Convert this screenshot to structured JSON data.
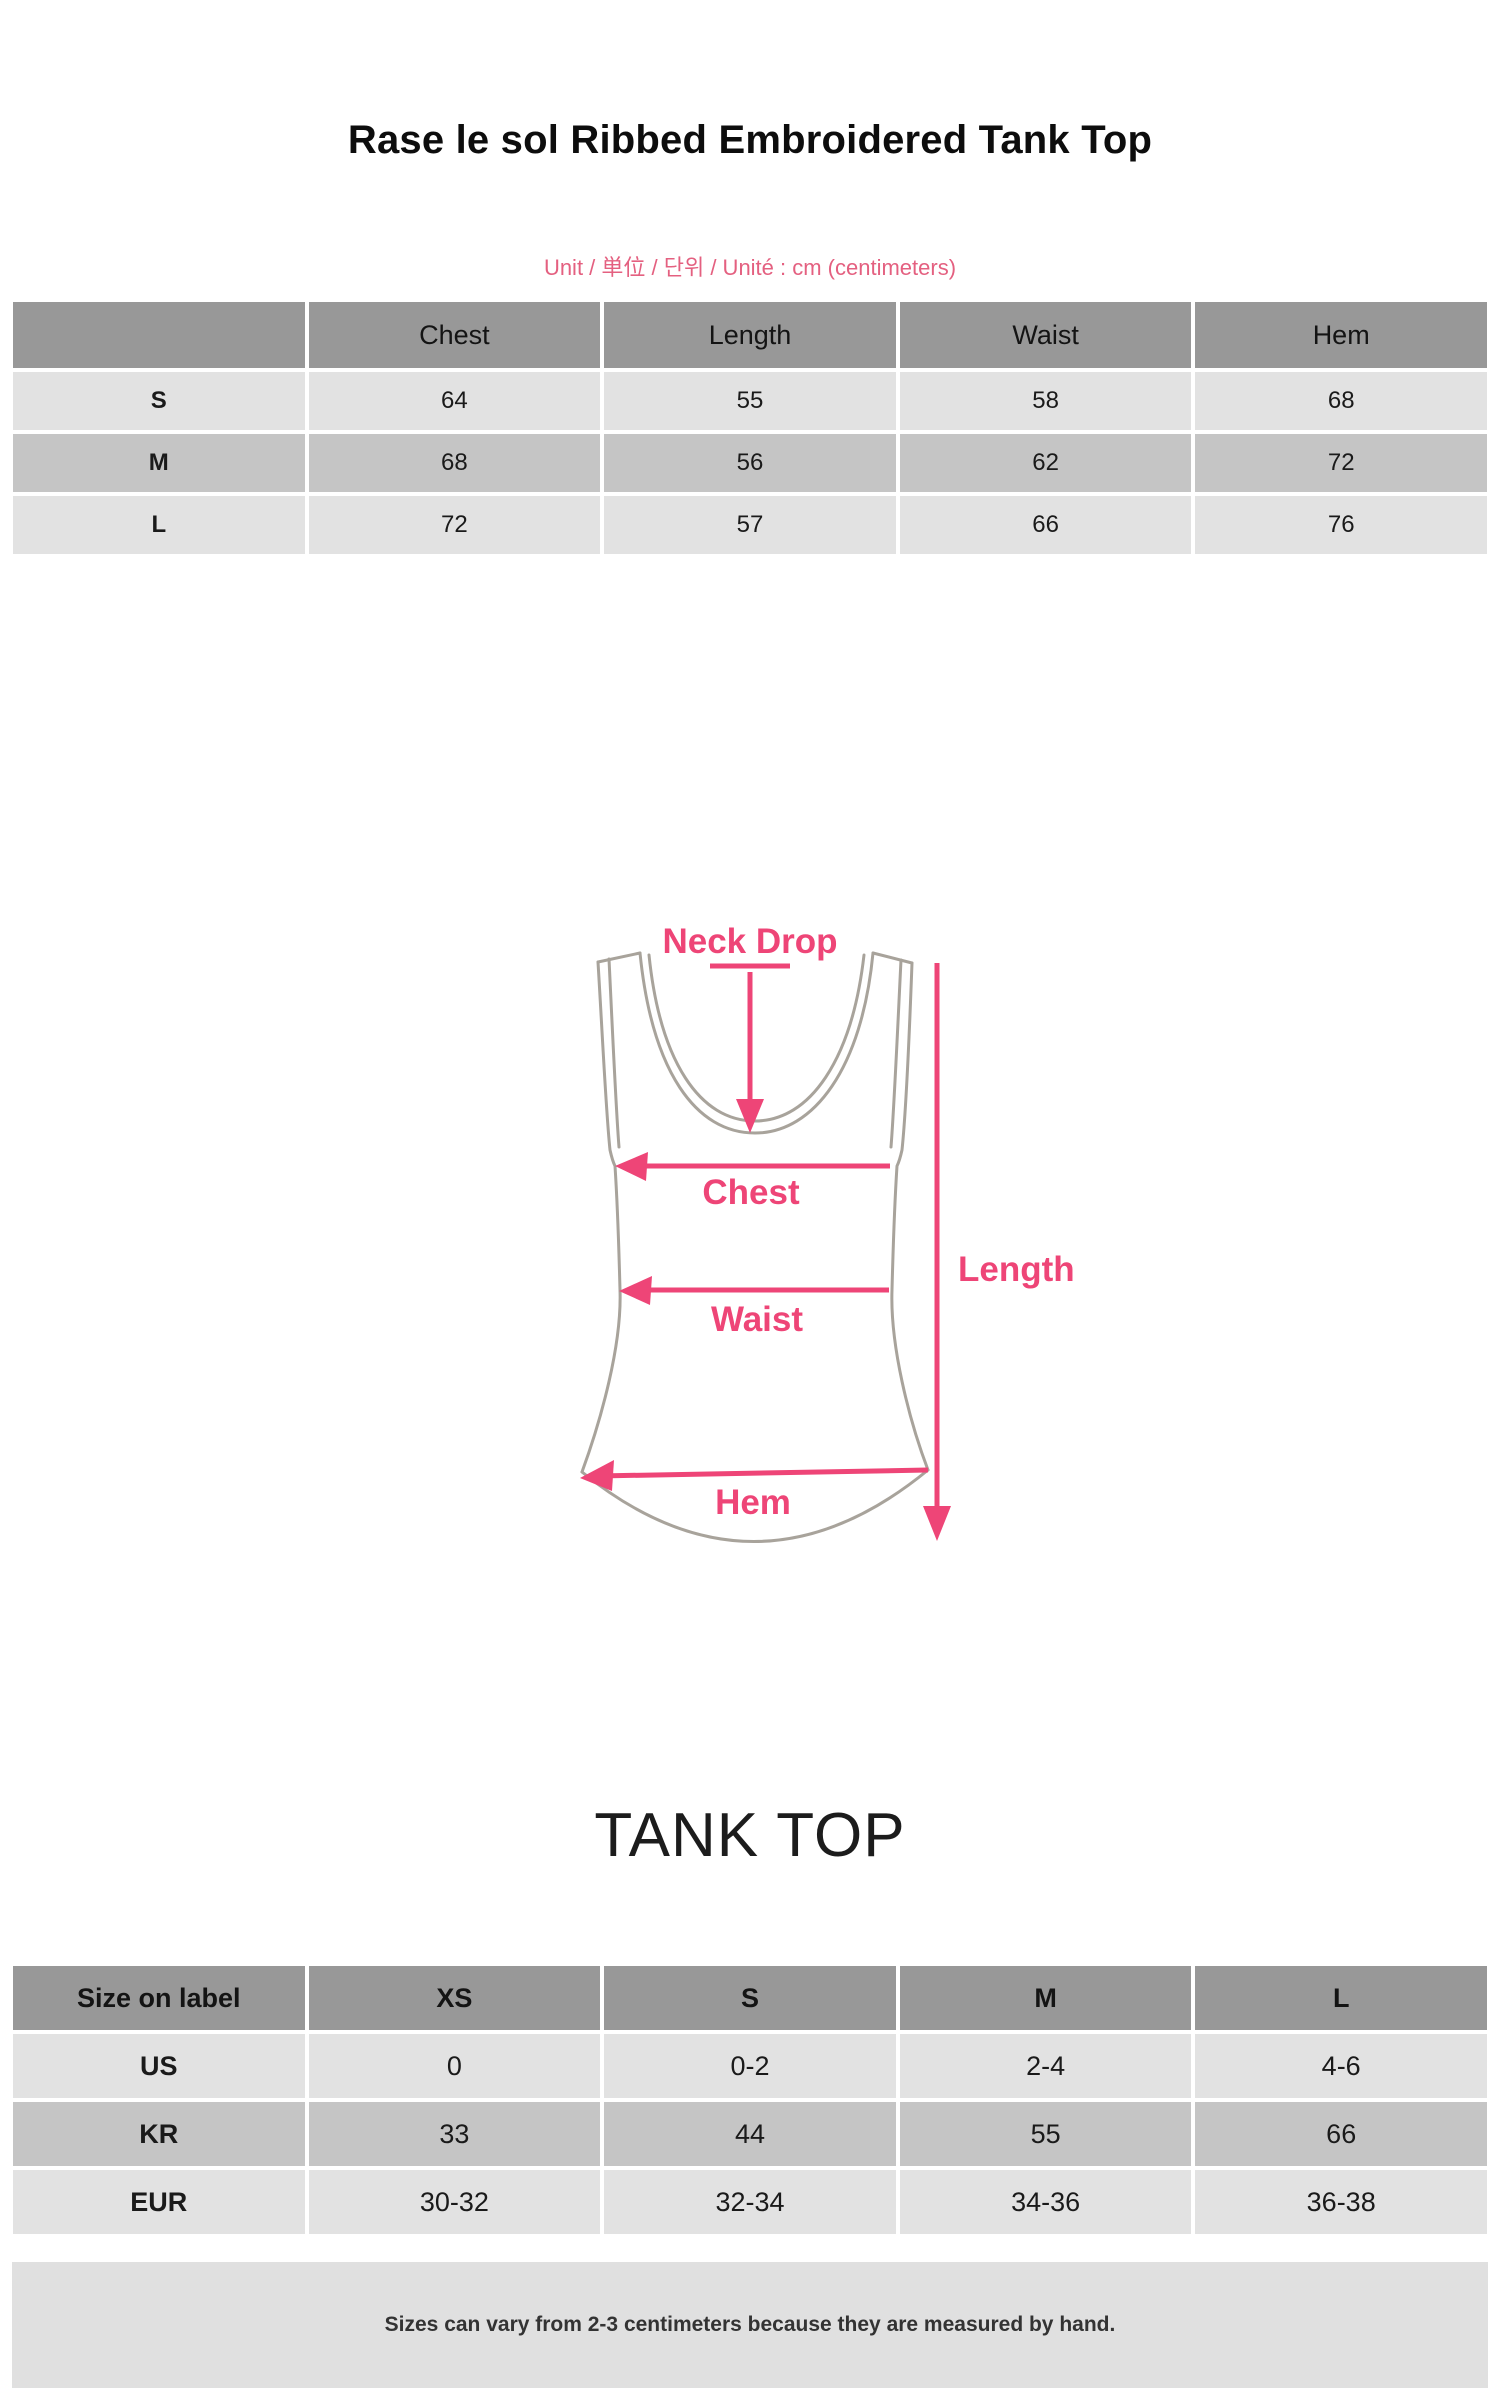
{
  "page": {
    "title": "Rase le sol Ribbed Embroidered Tank Top",
    "unit_note": "Unit / 単位 / 단위 / Unité : cm (centimeters)",
    "section_heading": "TANK TOP",
    "footer_note": "Sizes can vary from 2-3 centimeters because they are measured by hand."
  },
  "colors": {
    "accent_pink": "#ee4577",
    "unit_pink": "#e46080",
    "header_gray": "#989898",
    "row_light": "#e2e2e2",
    "row_dark": "#c5c5c5",
    "outline_gray": "#a8a39b",
    "footer_bg": "#e0e0e0"
  },
  "measurement_table": {
    "columns": [
      "",
      "Chest",
      "Length",
      "Waist",
      "Hem"
    ],
    "rows": [
      {
        "label": "S",
        "shade": "light",
        "values": [
          "64",
          "55",
          "58",
          "68"
        ]
      },
      {
        "label": "M",
        "shade": "dark",
        "values": [
          "68",
          "56",
          "62",
          "72"
        ]
      },
      {
        "label": "L",
        "shade": "light",
        "values": [
          "72",
          "57",
          "66",
          "76"
        ]
      }
    ]
  },
  "diagram": {
    "labels": {
      "neck_drop": "Neck Drop",
      "chest": "Chest",
      "waist": "Waist",
      "hem": "Hem",
      "length": "Length"
    }
  },
  "size_conversion_table": {
    "columns": [
      "Size on label",
      "XS",
      "S",
      "M",
      "L"
    ],
    "rows": [
      {
        "label": "US",
        "shade": "light",
        "values": [
          "0",
          "0-2",
          "2-4",
          "4-6"
        ]
      },
      {
        "label": "KR",
        "shade": "dark",
        "values": [
          "33",
          "44",
          "55",
          "66"
        ]
      },
      {
        "label": "EUR",
        "shade": "light",
        "values": [
          "30-32",
          "32-34",
          "34-36",
          "36-38"
        ]
      }
    ]
  }
}
